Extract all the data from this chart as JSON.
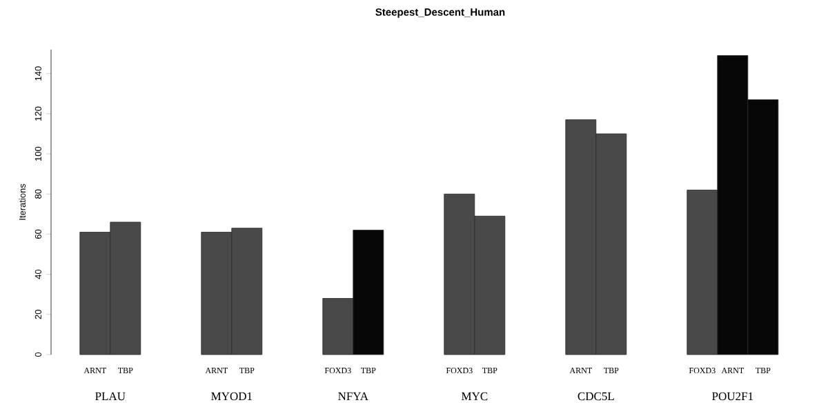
{
  "chart_data": {
    "type": "bar",
    "title": "Steepest_Descent_Human",
    "ylabel": "Iterations",
    "categories": [
      "ARNT",
      "TBP",
      null,
      "ARNT",
      "TBP",
      null,
      "FOXD3",
      "TBP",
      null,
      "FOXD3",
      "TBP",
      null,
      "ARNT",
      "TBP",
      null,
      "FOXD3",
      "ARNT",
      "TBP"
    ],
    "values": [
      61,
      66,
      null,
      61,
      63,
      null,
      28,
      62,
      null,
      80,
      69,
      null,
      117,
      110,
      null,
      82,
      149,
      127
    ],
    "colors": [
      "#494949",
      "#494949",
      null,
      "#494949",
      "#494949",
      null,
      "#494949",
      "#070707",
      null,
      "#494949",
      "#494949",
      null,
      "#494949",
      "#494949",
      null,
      "#494949",
      "#070707",
      "#070707"
    ],
    "ylim": [
      0,
      152
    ],
    "yticks": [
      0,
      20,
      40,
      60,
      80,
      100,
      120,
      140
    ],
    "annotations": [
      "PLAU",
      "MYOD1",
      "NFYA",
      "MYC",
      "CDC5L",
      "POU2F1"
    ]
  }
}
